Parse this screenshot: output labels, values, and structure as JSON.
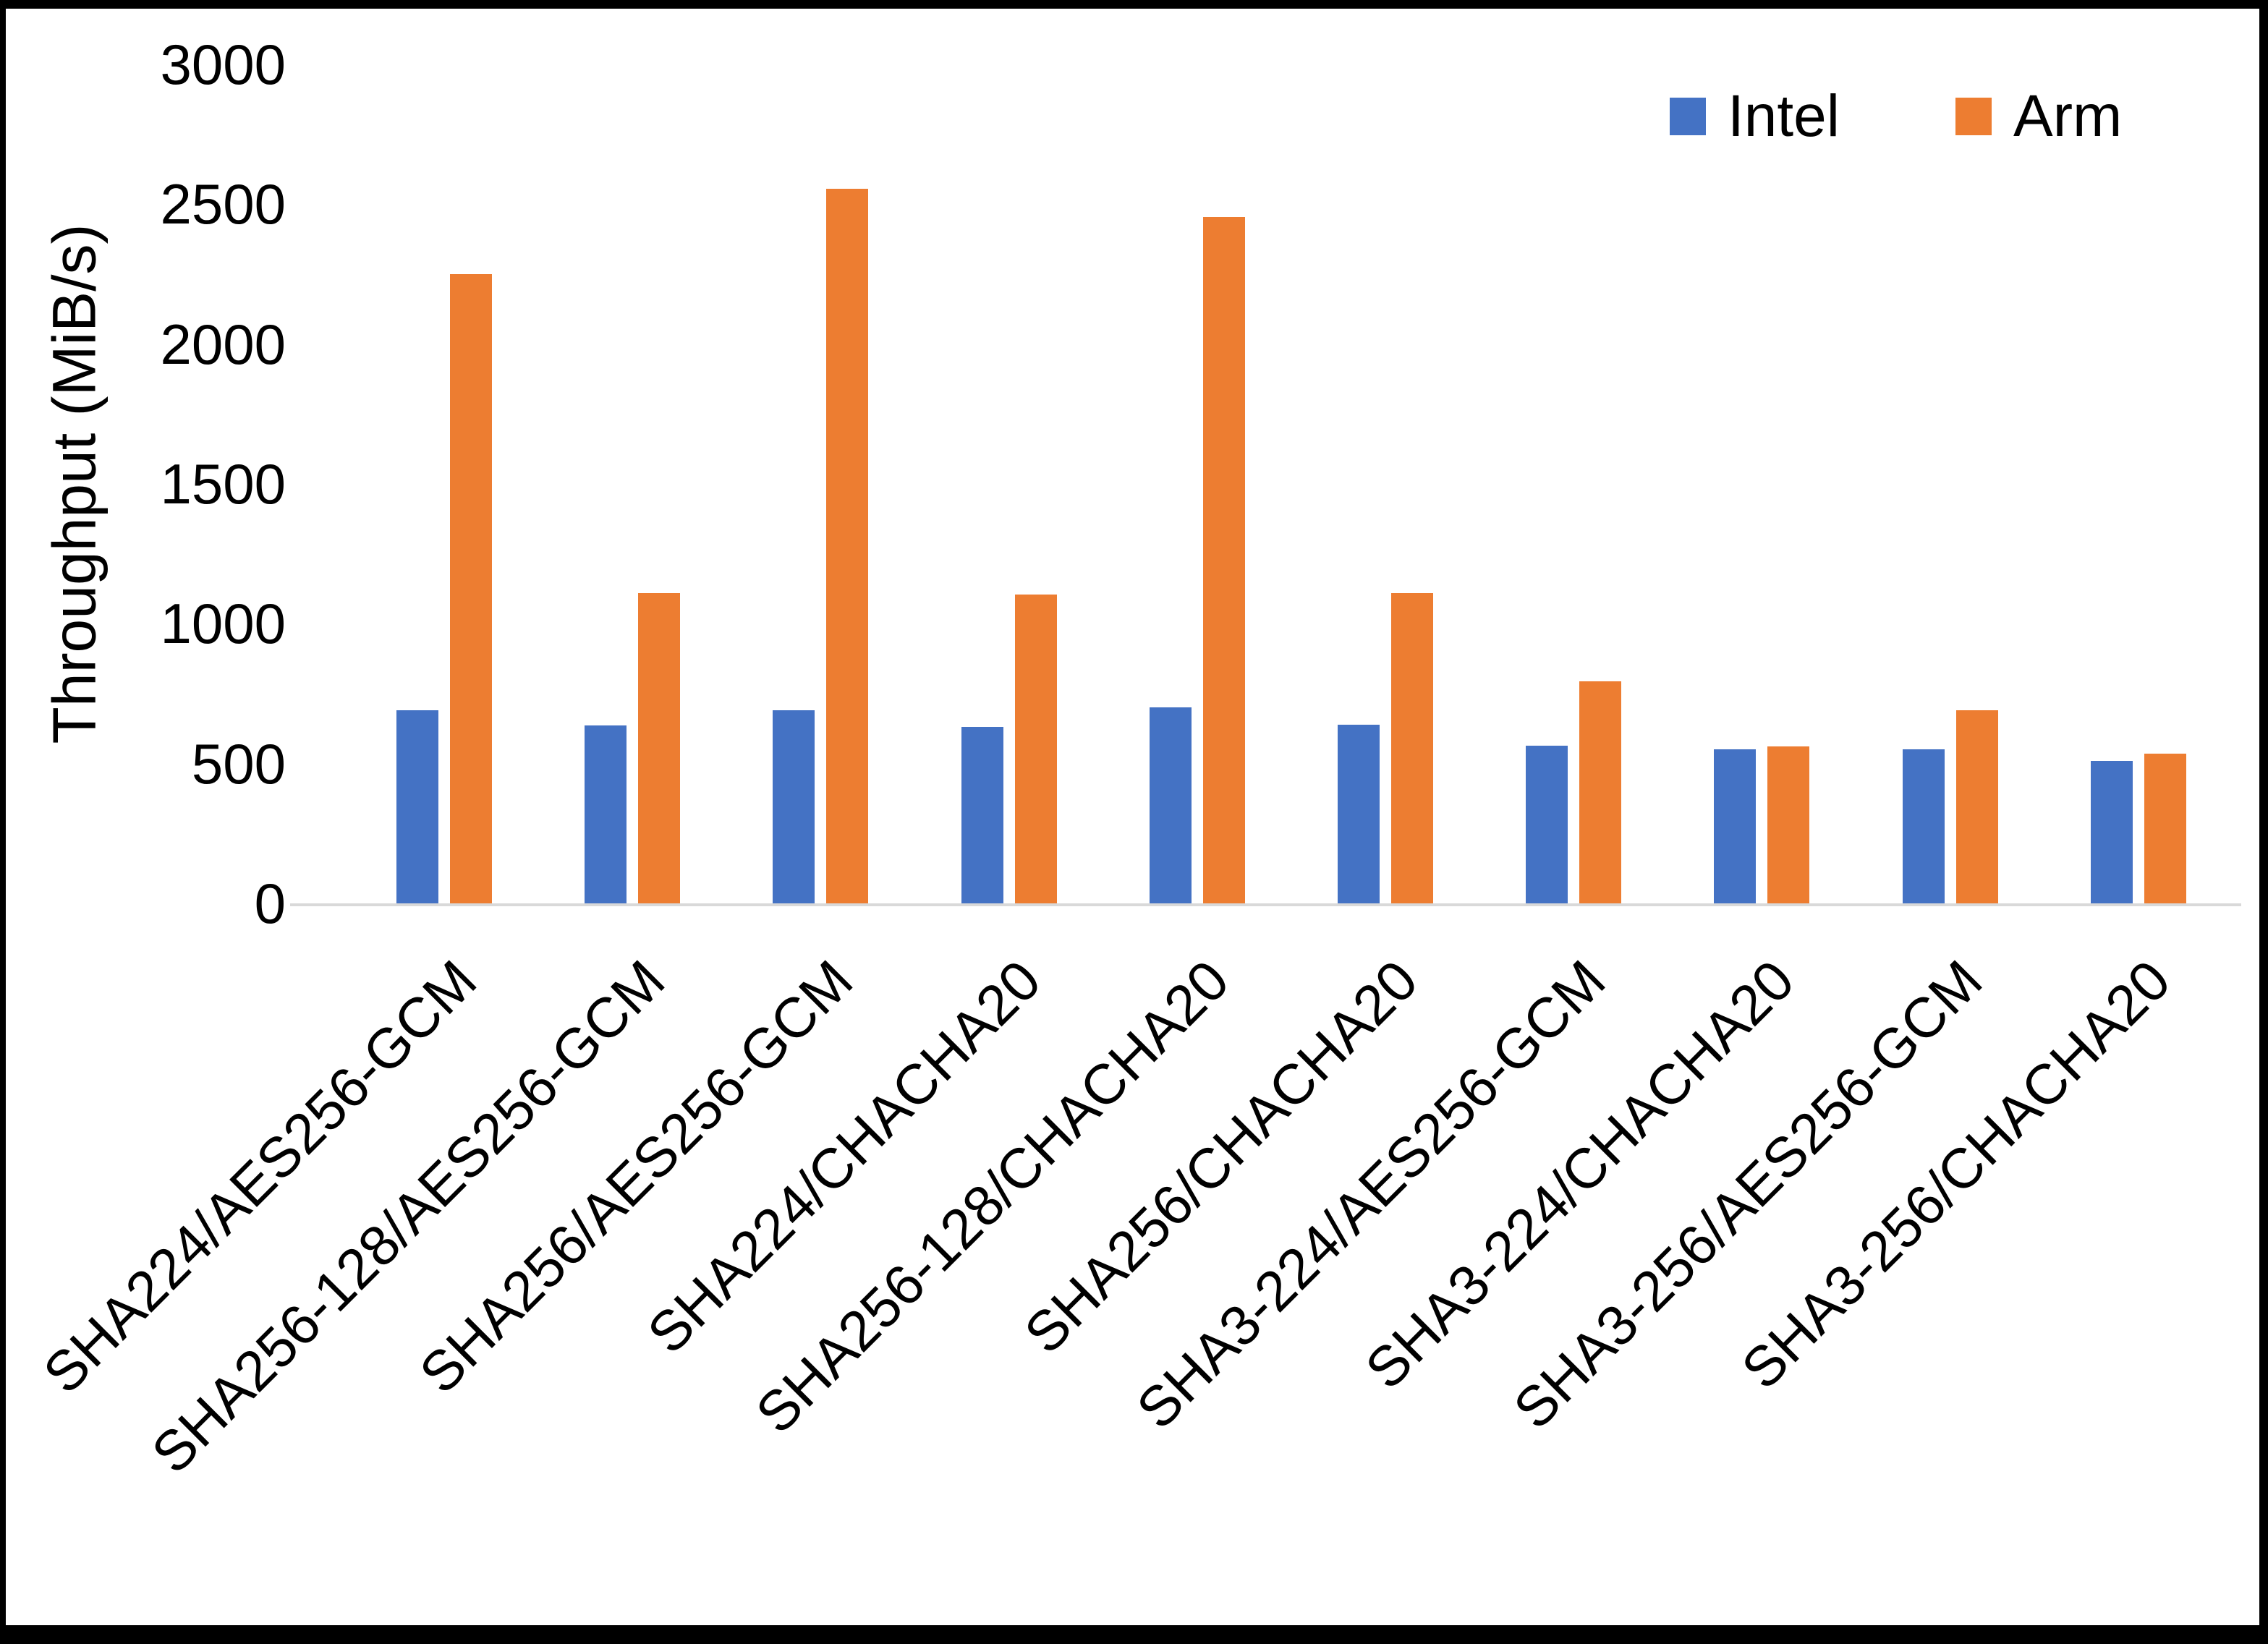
{
  "figure": {
    "background": "#ffffff",
    "border_color": "#000000",
    "axis_line_color": "#d9d9d9",
    "text_color": "#000000"
  },
  "legend": {
    "items": [
      {
        "label": "Intel",
        "color": "#4472C4",
        "swatch_icon": "square-swatch-icon"
      },
      {
        "label": "Arm",
        "color": "#ED7D31",
        "swatch_icon": "square-swatch-icon"
      }
    ],
    "position": "top-right"
  },
  "chart_data": {
    "type": "bar",
    "title": "",
    "xlabel": "",
    "ylabel": "Throughput (MiB/s)",
    "ylim": [
      0,
      3000
    ],
    "ytick_interval": 500,
    "yticks": [
      0,
      500,
      1000,
      1500,
      2000,
      2500,
      3000
    ],
    "grid": false,
    "legend_position": "top-right",
    "categories": [
      "SHA224/AES256-GCM",
      "SHA256-128/AES256-GCM",
      "SHA256/AES256-GCM",
      "SHA224/CHACHA20",
      "SHA256-128/CHACHA20",
      "SHA256/CHACHA20",
      "SHA3-224/AES256-GCM",
      "SHA3-224/CHACHA20",
      "SHA3-256/AES256-GCM",
      "SHA3-256/CHACHA20"
    ],
    "series": [
      {
        "name": "Intel",
        "color": "#4472C4",
        "values": [
          690,
          635,
          690,
          630,
          700,
          640,
          565,
          550,
          550,
          510
        ]
      },
      {
        "name": "Arm",
        "color": "#ED7D31",
        "values": [
          2250,
          1110,
          2555,
          1105,
          2455,
          1110,
          795,
          560,
          690,
          535
        ]
      }
    ]
  }
}
